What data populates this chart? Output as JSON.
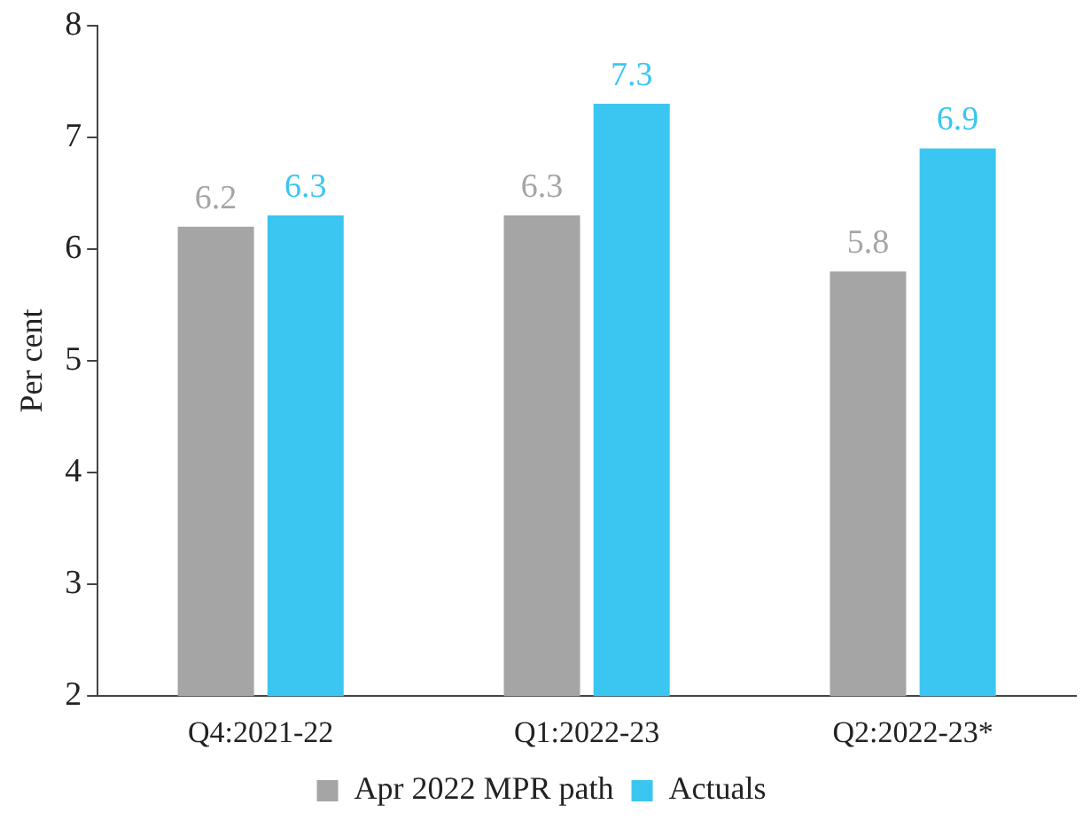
{
  "chart_data": {
    "type": "bar",
    "ylabel": "Per cent",
    "categories": [
      "Q4:2021-22",
      "Q1:2022-23",
      "Q2:2022-23*"
    ],
    "series": [
      {
        "name": "Apr 2022 MPR path",
        "color": "#a5a5a5",
        "values": [
          6.2,
          6.3,
          5.8
        ]
      },
      {
        "name": "Actuals",
        "color": "#3bc6f1",
        "values": [
          6.3,
          7.3,
          6.9
        ]
      }
    ],
    "ylim": [
      2,
      8
    ],
    "yticks": [
      2,
      3,
      4,
      5,
      6,
      7,
      8
    ],
    "grid": false,
    "legend": "bottom",
    "data_labels": true
  }
}
